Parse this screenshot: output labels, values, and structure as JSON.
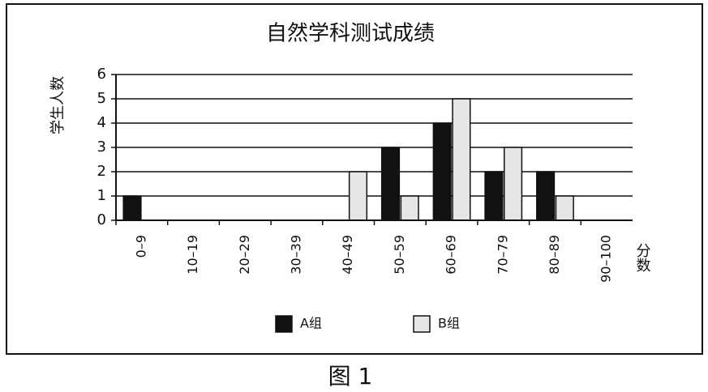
{
  "chart_data": {
    "type": "bar",
    "title": "自然学科测试成绩",
    "categories": [
      "0–9",
      "10–19",
      "20–29",
      "30–39",
      "40–49",
      "50–59",
      "60–69",
      "70–79",
      "80–89",
      "90–100"
    ],
    "series": [
      {
        "name": "A组",
        "color": "#111111",
        "values": [
          1,
          0,
          0,
          0,
          0,
          3,
          4,
          2,
          2,
          0
        ]
      },
      {
        "name": "B组",
        "color": "#e6e6e6",
        "values": [
          0,
          0,
          0,
          0,
          2,
          1,
          5,
          3,
          1,
          0
        ]
      }
    ],
    "ylim": [
      0,
      6
    ],
    "yticks": [
      0,
      1,
      2,
      3,
      4,
      5,
      6
    ],
    "grid": true,
    "y_label": "学生人数",
    "x_label": "分数",
    "legend": "bottom"
  },
  "caption": "图 1"
}
